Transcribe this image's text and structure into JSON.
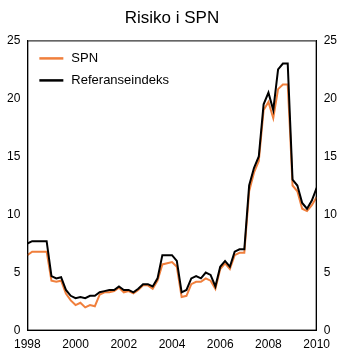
{
  "chart_data": {
    "type": "line",
    "title": "Risiko i SPN",
    "x": [
      1998.0,
      1998.2,
      1998.5,
      1998.8,
      1999.0,
      1999.2,
      1999.4,
      1999.6,
      1999.8,
      2000.0,
      2000.2,
      2000.4,
      2000.6,
      2000.8,
      2001.0,
      2001.2,
      2001.4,
      2001.6,
      2001.8,
      2002.0,
      2002.2,
      2002.4,
      2002.6,
      2002.8,
      2003.0,
      2003.2,
      2003.4,
      2003.6,
      2003.8,
      2004.0,
      2004.2,
      2004.4,
      2004.6,
      2004.8,
      2005.0,
      2005.2,
      2005.4,
      2005.6,
      2005.8,
      2006.0,
      2006.2,
      2006.4,
      2006.6,
      2006.8,
      2007.0,
      2007.2,
      2007.4,
      2007.6,
      2007.8,
      2008.0,
      2008.2,
      2008.4,
      2008.6,
      2008.8,
      2008.9,
      2009.0,
      2009.2,
      2009.4,
      2009.6,
      2009.8,
      2010.0
    ],
    "series": [
      {
        "name": "SPN",
        "color": "#f07f3c",
        "values": [
          6.5,
          6.8,
          6.8,
          6.8,
          4.3,
          4.2,
          4.3,
          3.2,
          2.6,
          2.2,
          2.4,
          2.0,
          2.2,
          2.1,
          3.1,
          3.3,
          3.3,
          3.4,
          3.7,
          3.3,
          3.4,
          3.2,
          3.5,
          3.9,
          3.9,
          3.6,
          4.3,
          5.7,
          5.8,
          5.9,
          5.5,
          2.9,
          3.0,
          4.0,
          4.2,
          4.2,
          4.5,
          4.3,
          3.6,
          5.3,
          5.8,
          5.3,
          6.5,
          6.7,
          6.7,
          12.0,
          13.6,
          14.6,
          19.0,
          19.7,
          18.3,
          20.8,
          21.2,
          21.2,
          17.0,
          12.5,
          12.0,
          10.5,
          10.3,
          10.8,
          11.5
        ]
      },
      {
        "name": "Referanseindeks",
        "color": "#000000",
        "values": [
          7.5,
          7.7,
          7.7,
          7.7,
          4.7,
          4.5,
          4.6,
          3.5,
          3.0,
          2.8,
          2.9,
          2.8,
          3.0,
          3.0,
          3.3,
          3.4,
          3.5,
          3.5,
          3.8,
          3.5,
          3.5,
          3.3,
          3.6,
          4.0,
          4.0,
          3.8,
          4.5,
          6.5,
          6.5,
          6.5,
          6.0,
          3.3,
          3.5,
          4.5,
          4.7,
          4.5,
          5.0,
          4.8,
          3.8,
          5.5,
          6.0,
          5.5,
          6.8,
          7.0,
          7.0,
          12.5,
          14.0,
          15.0,
          19.5,
          20.5,
          19.0,
          22.5,
          23.0,
          23.0,
          18.0,
          13.0,
          12.5,
          11.0,
          10.5,
          11.2,
          12.3
        ]
      }
    ],
    "xlim": [
      1998,
      2010
    ],
    "xticks": [
      1998,
      2000,
      2002,
      2004,
      2006,
      2008,
      2010
    ],
    "ylim": [
      0,
      25
    ],
    "yticks": [
      0,
      5,
      10,
      15,
      20,
      25
    ],
    "y2lim": [
      0,
      25
    ],
    "y2ticks": [
      0,
      5,
      10,
      15,
      20,
      25
    ],
    "grid": false,
    "legend": "upper left"
  }
}
